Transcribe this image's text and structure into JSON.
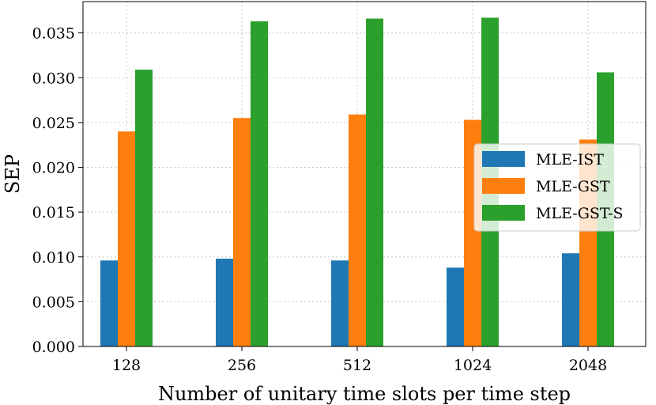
{
  "chart_data": {
    "type": "bar",
    "title": "",
    "xlabel": "Number of unitary time slots per time step",
    "ylabel": "SEP",
    "categories": [
      "128",
      "256",
      "512",
      "1024",
      "2048"
    ],
    "series": [
      {
        "name": "MLE-IST",
        "color": "#1f77b4",
        "values": [
          0.0096,
          0.0098,
          0.0096,
          0.0088,
          0.0104
        ]
      },
      {
        "name": "MLE-GST",
        "color": "#ff7f0e",
        "values": [
          0.024,
          0.0255,
          0.0259,
          0.0253,
          0.0231
        ]
      },
      {
        "name": "MLE-GST-S",
        "color": "#2ca02c",
        "values": [
          0.0309,
          0.0363,
          0.0366,
          0.0367,
          0.0306
        ]
      }
    ],
    "ylim": [
      0,
      0.0385
    ],
    "yticks": [
      "0.000",
      "0.005",
      "0.010",
      "0.015",
      "0.020",
      "0.025",
      "0.030",
      "0.035"
    ],
    "grid": true,
    "legend_position": "center-right"
  }
}
